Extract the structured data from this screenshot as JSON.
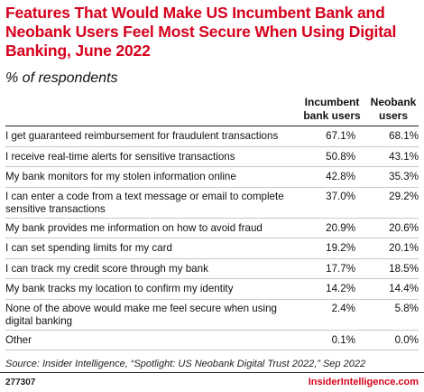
{
  "title": "Features That Would Make US Incumbent Bank and Neobank Users Feel Most Secure When Using Digital Banking, June 2022",
  "subtitle": "% of respondents",
  "columns": [
    "Incumbent bank users",
    "Neobank users"
  ],
  "chart_data": {
    "type": "table",
    "title": "Features That Would Make US Incumbent Bank and Neobank Users Feel Most Secure When Using Digital Banking, June 2022",
    "subtitle": "% of respondents",
    "columns": [
      "Incumbent bank users",
      "Neobank users"
    ],
    "rows": [
      {
        "label": "I get guaranteed reimbursement for fraudulent transactions",
        "values": [
          67.1,
          68.1
        ],
        "display": [
          "67.1%",
          "68.1%"
        ]
      },
      {
        "label": "I receive real-time alerts for sensitive transactions",
        "values": [
          50.8,
          43.1
        ],
        "display": [
          "50.8%",
          "43.1%"
        ]
      },
      {
        "label": "My bank monitors for my stolen information online",
        "values": [
          42.8,
          35.3
        ],
        "display": [
          "42.8%",
          "35.3%"
        ]
      },
      {
        "label": "I can enter a code from a text message or email to complete sensitive transactions",
        "values": [
          37.0,
          29.2
        ],
        "display": [
          "37.0%",
          "29.2%"
        ]
      },
      {
        "label": "My bank provides me information on how to avoid fraud",
        "values": [
          20.9,
          20.6
        ],
        "display": [
          "20.9%",
          "20.6%"
        ]
      },
      {
        "label": "I can set spending limits for my card",
        "values": [
          19.2,
          20.1
        ],
        "display": [
          "19.2%",
          "20.1%"
        ]
      },
      {
        "label": "I can track my credit score through my bank",
        "values": [
          17.7,
          18.5
        ],
        "display": [
          "17.7%",
          "18.5%"
        ]
      },
      {
        "label": "My bank tracks my location to confirm my identity",
        "values": [
          14.2,
          14.4
        ],
        "display": [
          "14.2%",
          "14.4%"
        ]
      },
      {
        "label": "None of the above would make me feel secure when using digital banking",
        "values": [
          2.4,
          5.8
        ],
        "display": [
          "2.4%",
          "5.8%"
        ]
      },
      {
        "label": "Other",
        "values": [
          0.1,
          0.0
        ],
        "display": [
          "0.1%",
          "0.0%"
        ]
      }
    ]
  },
  "source": "Source: Insider Intelligence, “Spotlight: US Neobank Digital Trust 2022,” Sep 2022",
  "chart_id": "277307",
  "brand": "InsiderIntelligence.com",
  "colors": {
    "title": "#d6001c",
    "brand": "#d6001c",
    "text": "#111111",
    "row_rule": "#c8c8c8"
  }
}
